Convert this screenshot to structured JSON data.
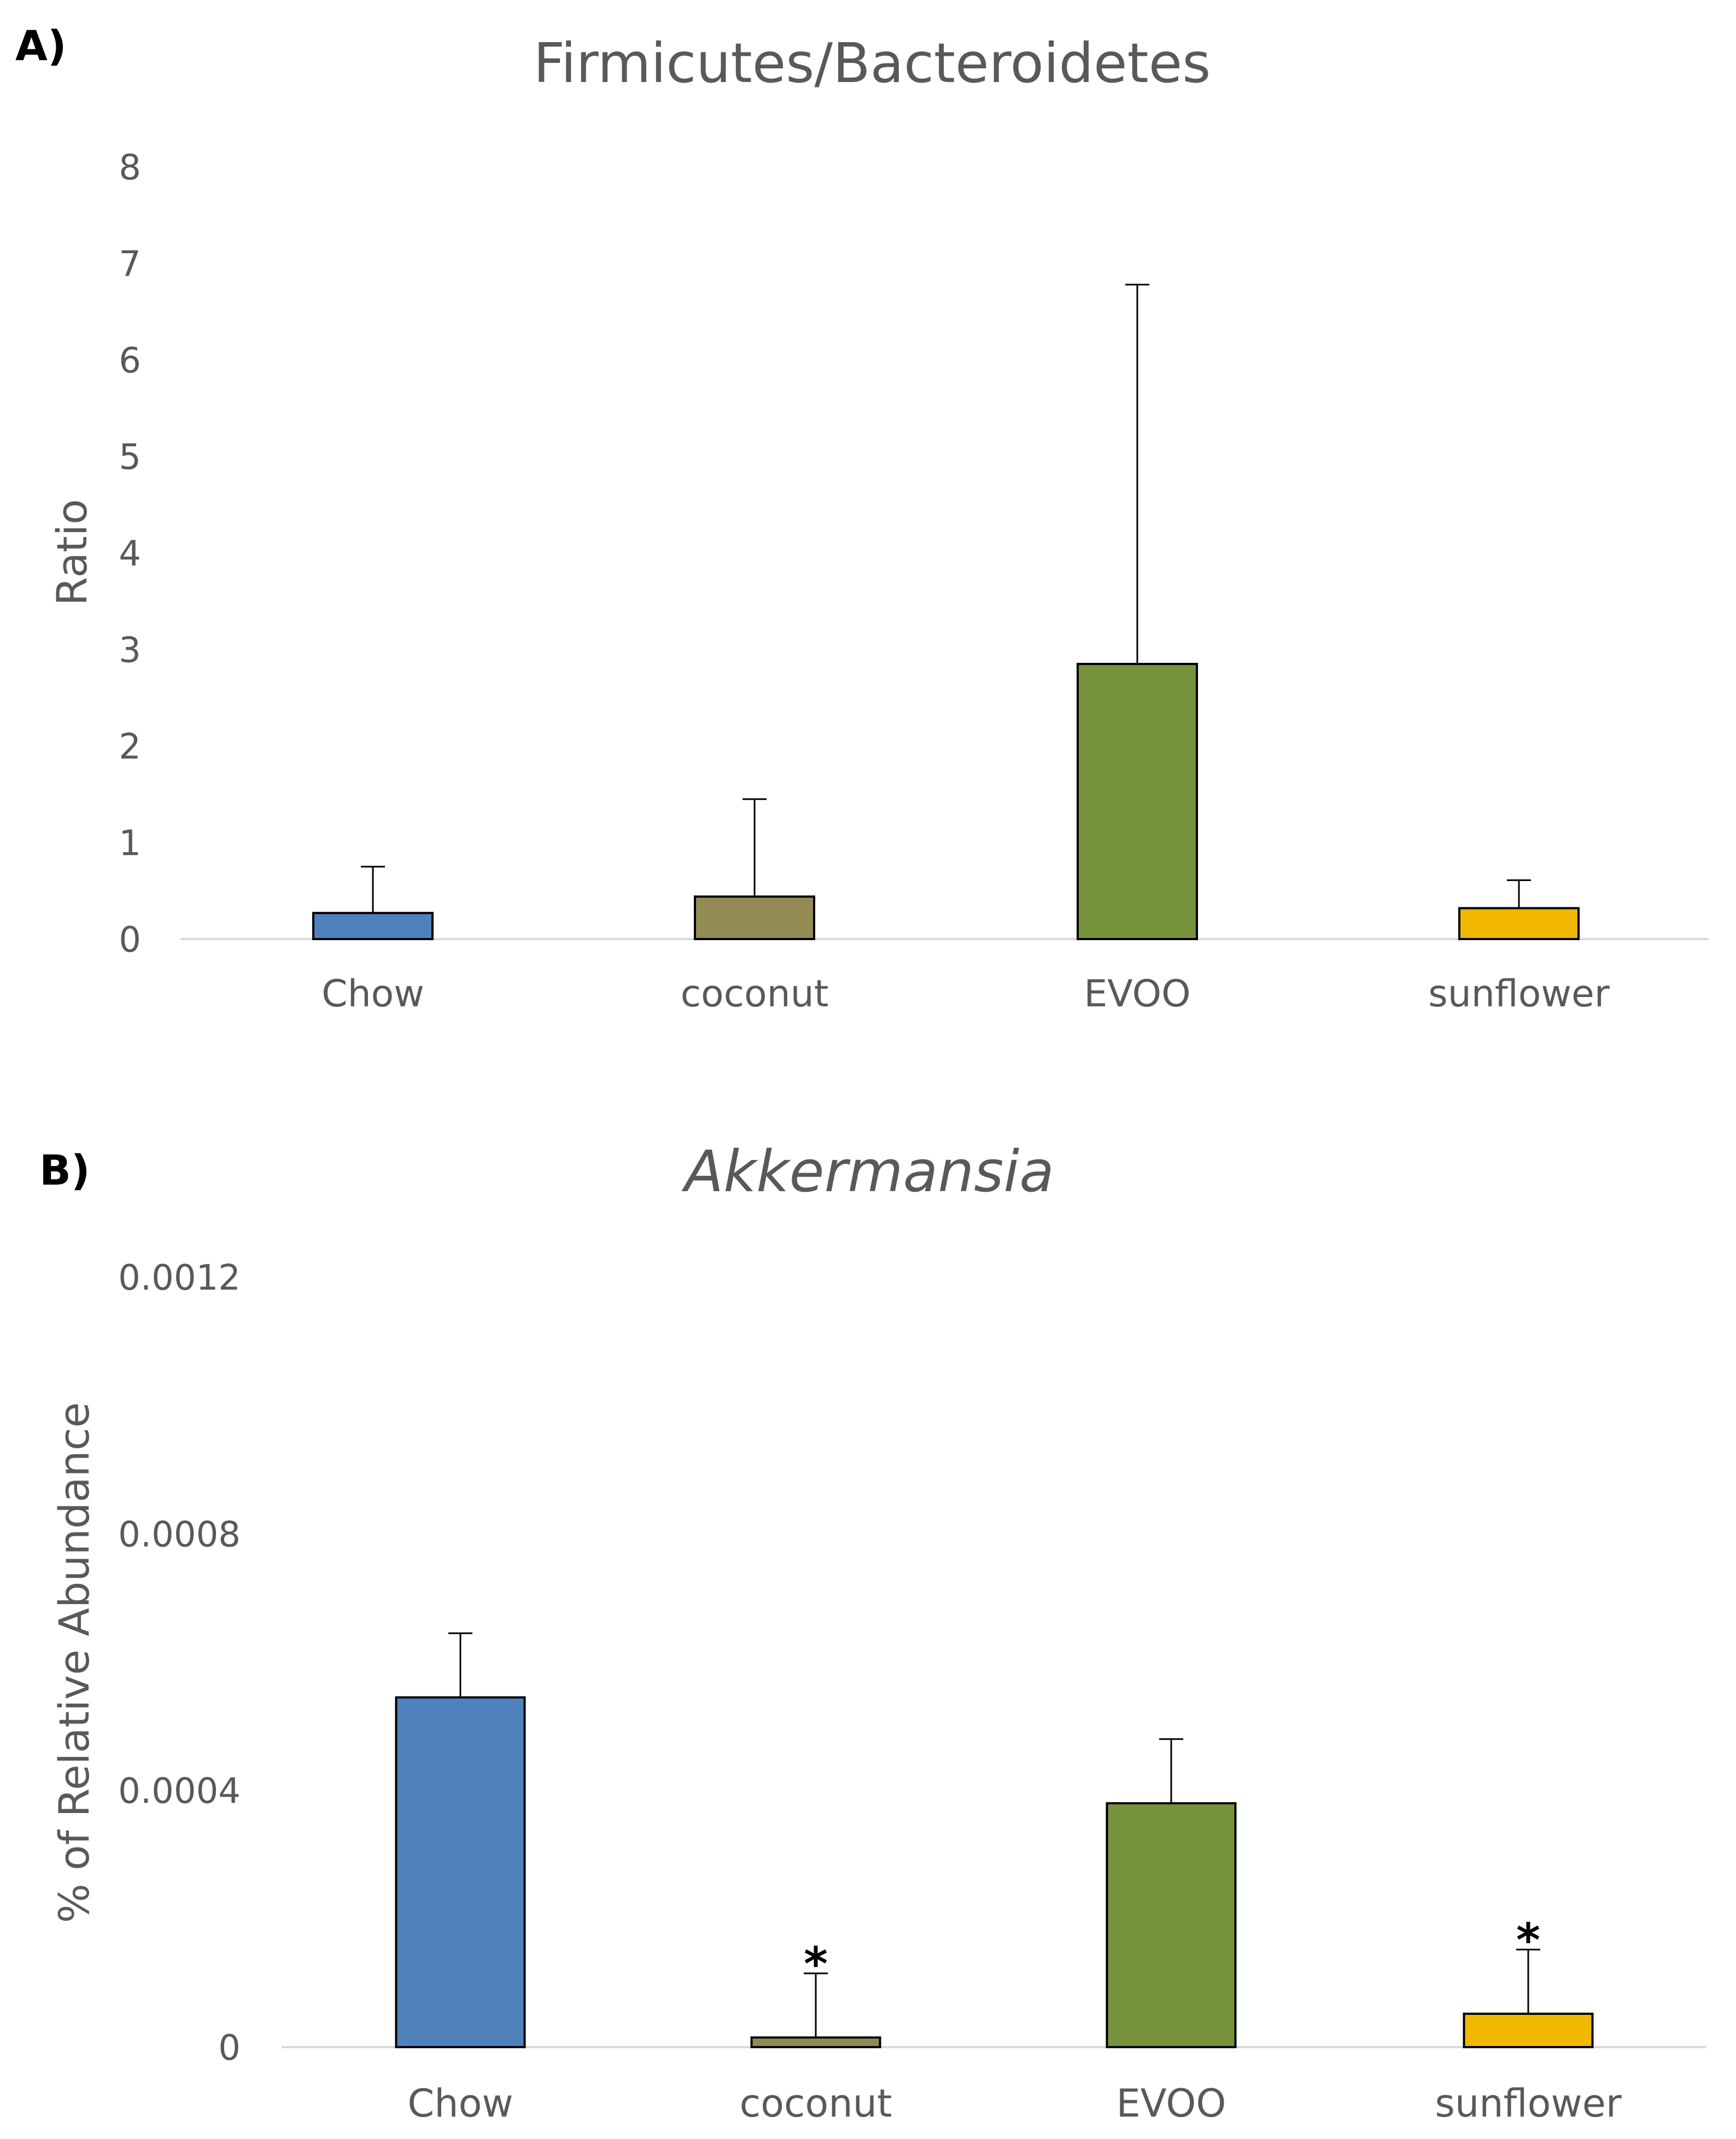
{
  "chart_data": [
    {
      "type": "bar",
      "panel_label": "A)",
      "title": "Firmicutes/Bacteroidetes",
      "title_italic": false,
      "xlabel": "",
      "ylabel": "Ratio",
      "ylim": [
        0,
        8
      ],
      "yticks": [
        "0",
        "1",
        "2",
        "3",
        "4",
        "5",
        "6",
        "7",
        "8"
      ],
      "grid": false,
      "categories": [
        "Chow",
        "coconut",
        "EVOO",
        "sunflower"
      ],
      "values": [
        0.27,
        0.44,
        2.85,
        0.32
      ],
      "error_upper": [
        0.75,
        1.45,
        6.78,
        0.61
      ],
      "annotations": [
        "",
        "",
        "",
        ""
      ],
      "colors": [
        "#4f81bd",
        "#948a54",
        "#77933c",
        "#f2b800"
      ]
    },
    {
      "type": "bar",
      "panel_label": "B)",
      "title": "Akkermansia",
      "title_italic": true,
      "xlabel": "",
      "ylabel": "% of Relative Abundance",
      "ylim": [
        0,
        0.0012
      ],
      "yticks": [
        "0",
        "0.0004",
        "0.0008",
        "0.0012"
      ],
      "grid": false,
      "categories": [
        "Chow",
        "coconut",
        "EVOO",
        "sunflower"
      ],
      "values": [
        0.000545,
        1.5e-05,
        0.00038,
        5.2e-05
      ],
      "error_upper": [
        0.000645,
        0.000115,
        0.00048,
        0.000152
      ],
      "annotations": [
        "",
        "*",
        "",
        "*"
      ],
      "colors": [
        "#4f81bd",
        "#948a54",
        "#77933c",
        "#f2b800"
      ]
    }
  ]
}
